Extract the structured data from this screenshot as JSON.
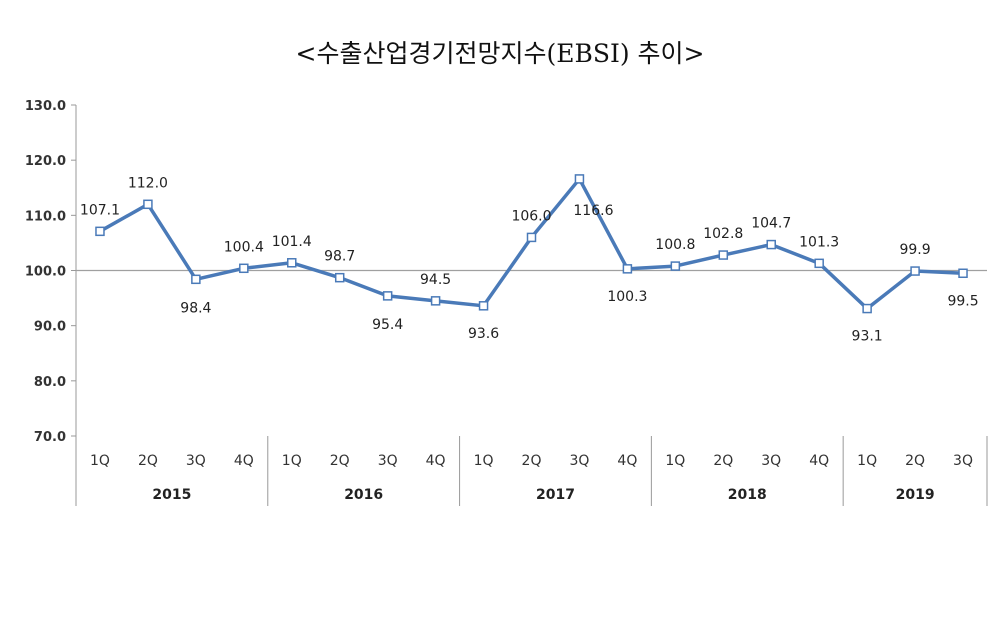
{
  "chart_data": {
    "type": "line",
    "title": "<수출산업경기전망지수(EBSI) 추이>",
    "xlabel": "",
    "ylabel": "",
    "ylim": [
      70,
      130
    ],
    "yticks": [
      "70.0",
      "80.0",
      "90.0",
      "100.0",
      "110.0",
      "120.0",
      "130.0"
    ],
    "reference_line": 100,
    "grid": false,
    "legend": "none",
    "line_color": "#4a7ab8",
    "categories": [
      "1Q",
      "2Q",
      "3Q",
      "4Q",
      "1Q",
      "2Q",
      "3Q",
      "4Q",
      "1Q",
      "2Q",
      "3Q",
      "4Q",
      "1Q",
      "2Q",
      "3Q",
      "4Q",
      "1Q",
      "2Q",
      "3Q"
    ],
    "groups": [
      {
        "label": "2015",
        "count": 4
      },
      {
        "label": "2016",
        "count": 4
      },
      {
        "label": "2017",
        "count": 4
      },
      {
        "label": "2018",
        "count": 4
      },
      {
        "label": "2019",
        "count": 3
      }
    ],
    "series": [
      {
        "values": [
          107.1,
          112.0,
          98.4,
          100.4,
          101.4,
          98.7,
          95.4,
          94.5,
          93.6,
          106.0,
          116.6,
          100.3,
          100.8,
          102.8,
          104.7,
          101.3,
          93.1,
          99.9,
          99.5
        ],
        "labels": [
          "107.1",
          "112.0",
          "98.4",
          "100.4",
          "101.4",
          "98.7",
          "95.4",
          "94.5",
          "93.6",
          "106.0",
          "116.6",
          "100.3",
          "100.8",
          "102.8",
          "104.7",
          "101.3",
          "93.1",
          "99.9",
          "99.5"
        ]
      }
    ]
  }
}
